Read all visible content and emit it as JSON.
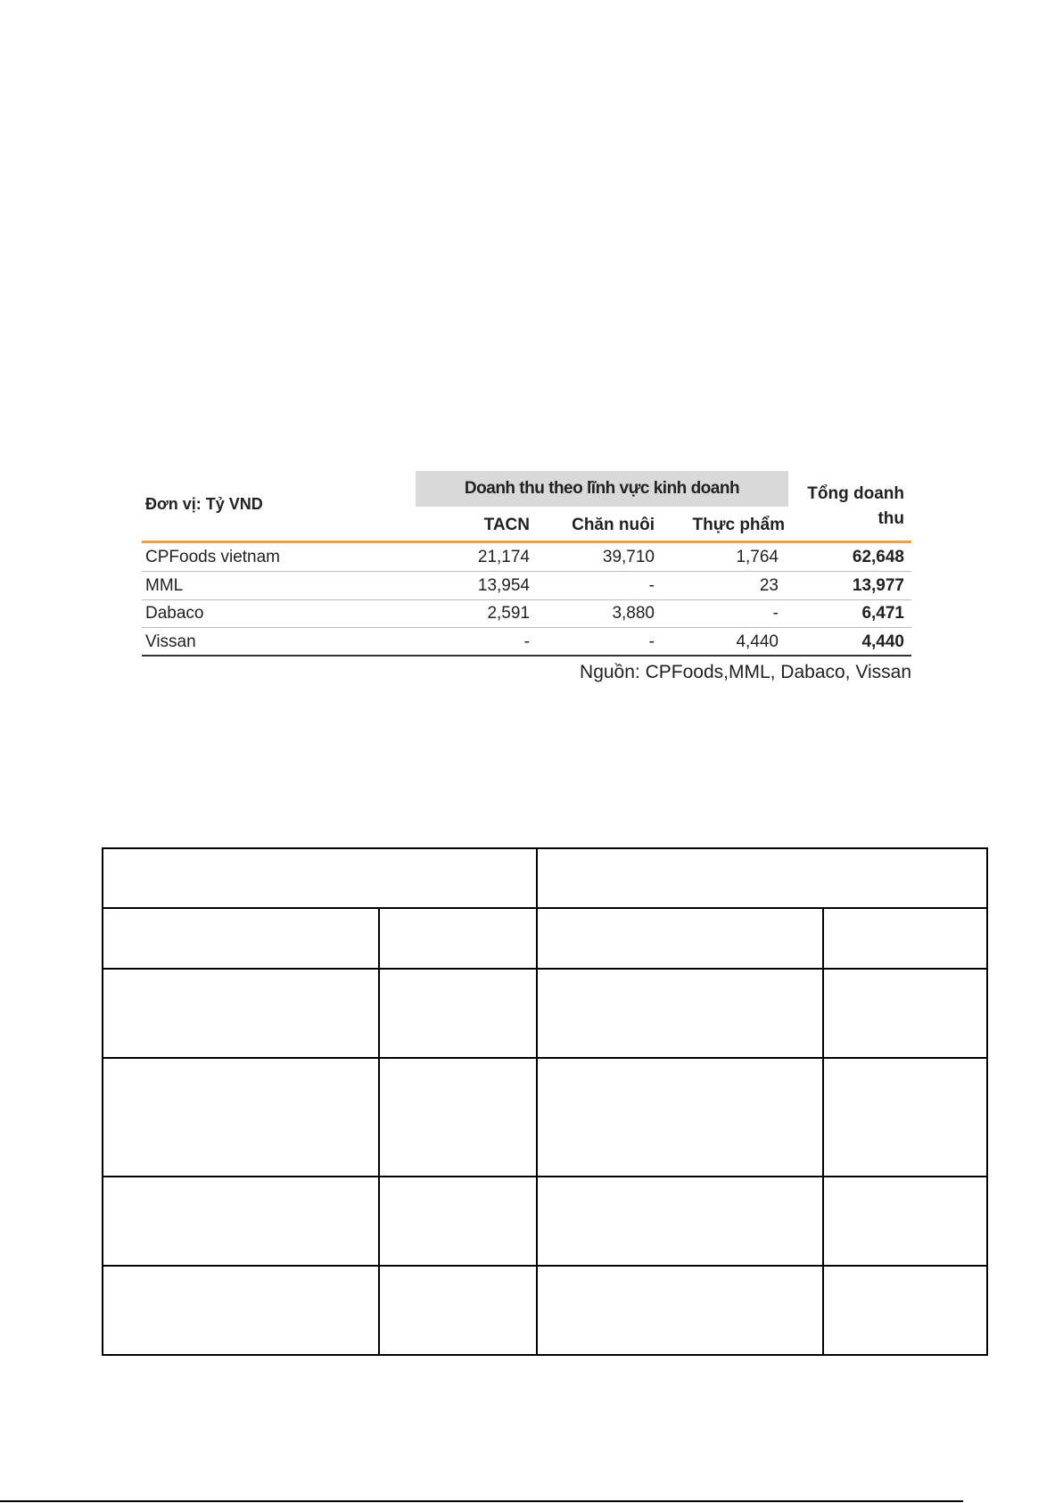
{
  "revenue_table": {
    "unit_label": "Đơn vị: Tỷ VND",
    "group_header": "Doanh thu theo lĩnh vực kinh doanh",
    "total_header": "Tổng doanh thu",
    "columns": [
      "TACN",
      "Chăn nuôi",
      "Thực phẩm"
    ],
    "rows": [
      {
        "name": "CPFoods vietnam",
        "values": [
          "21,174",
          "39,710",
          "1,764"
        ],
        "total": "62,648"
      },
      {
        "name": "MML",
        "values": [
          "13,954",
          "-",
          "23"
        ],
        "total": "13,977"
      },
      {
        "name": "Dabaco",
        "values": [
          "2,591",
          "3,880",
          "-"
        ],
        "total": "6,471"
      },
      {
        "name": "Vissan",
        "values": [
          "-",
          "-",
          "4,440"
        ],
        "total": "4,440"
      }
    ],
    "source": "Nguồn: CPFoods,MML, Dabaco, Vissan",
    "accent_color": "#f0a040"
  }
}
